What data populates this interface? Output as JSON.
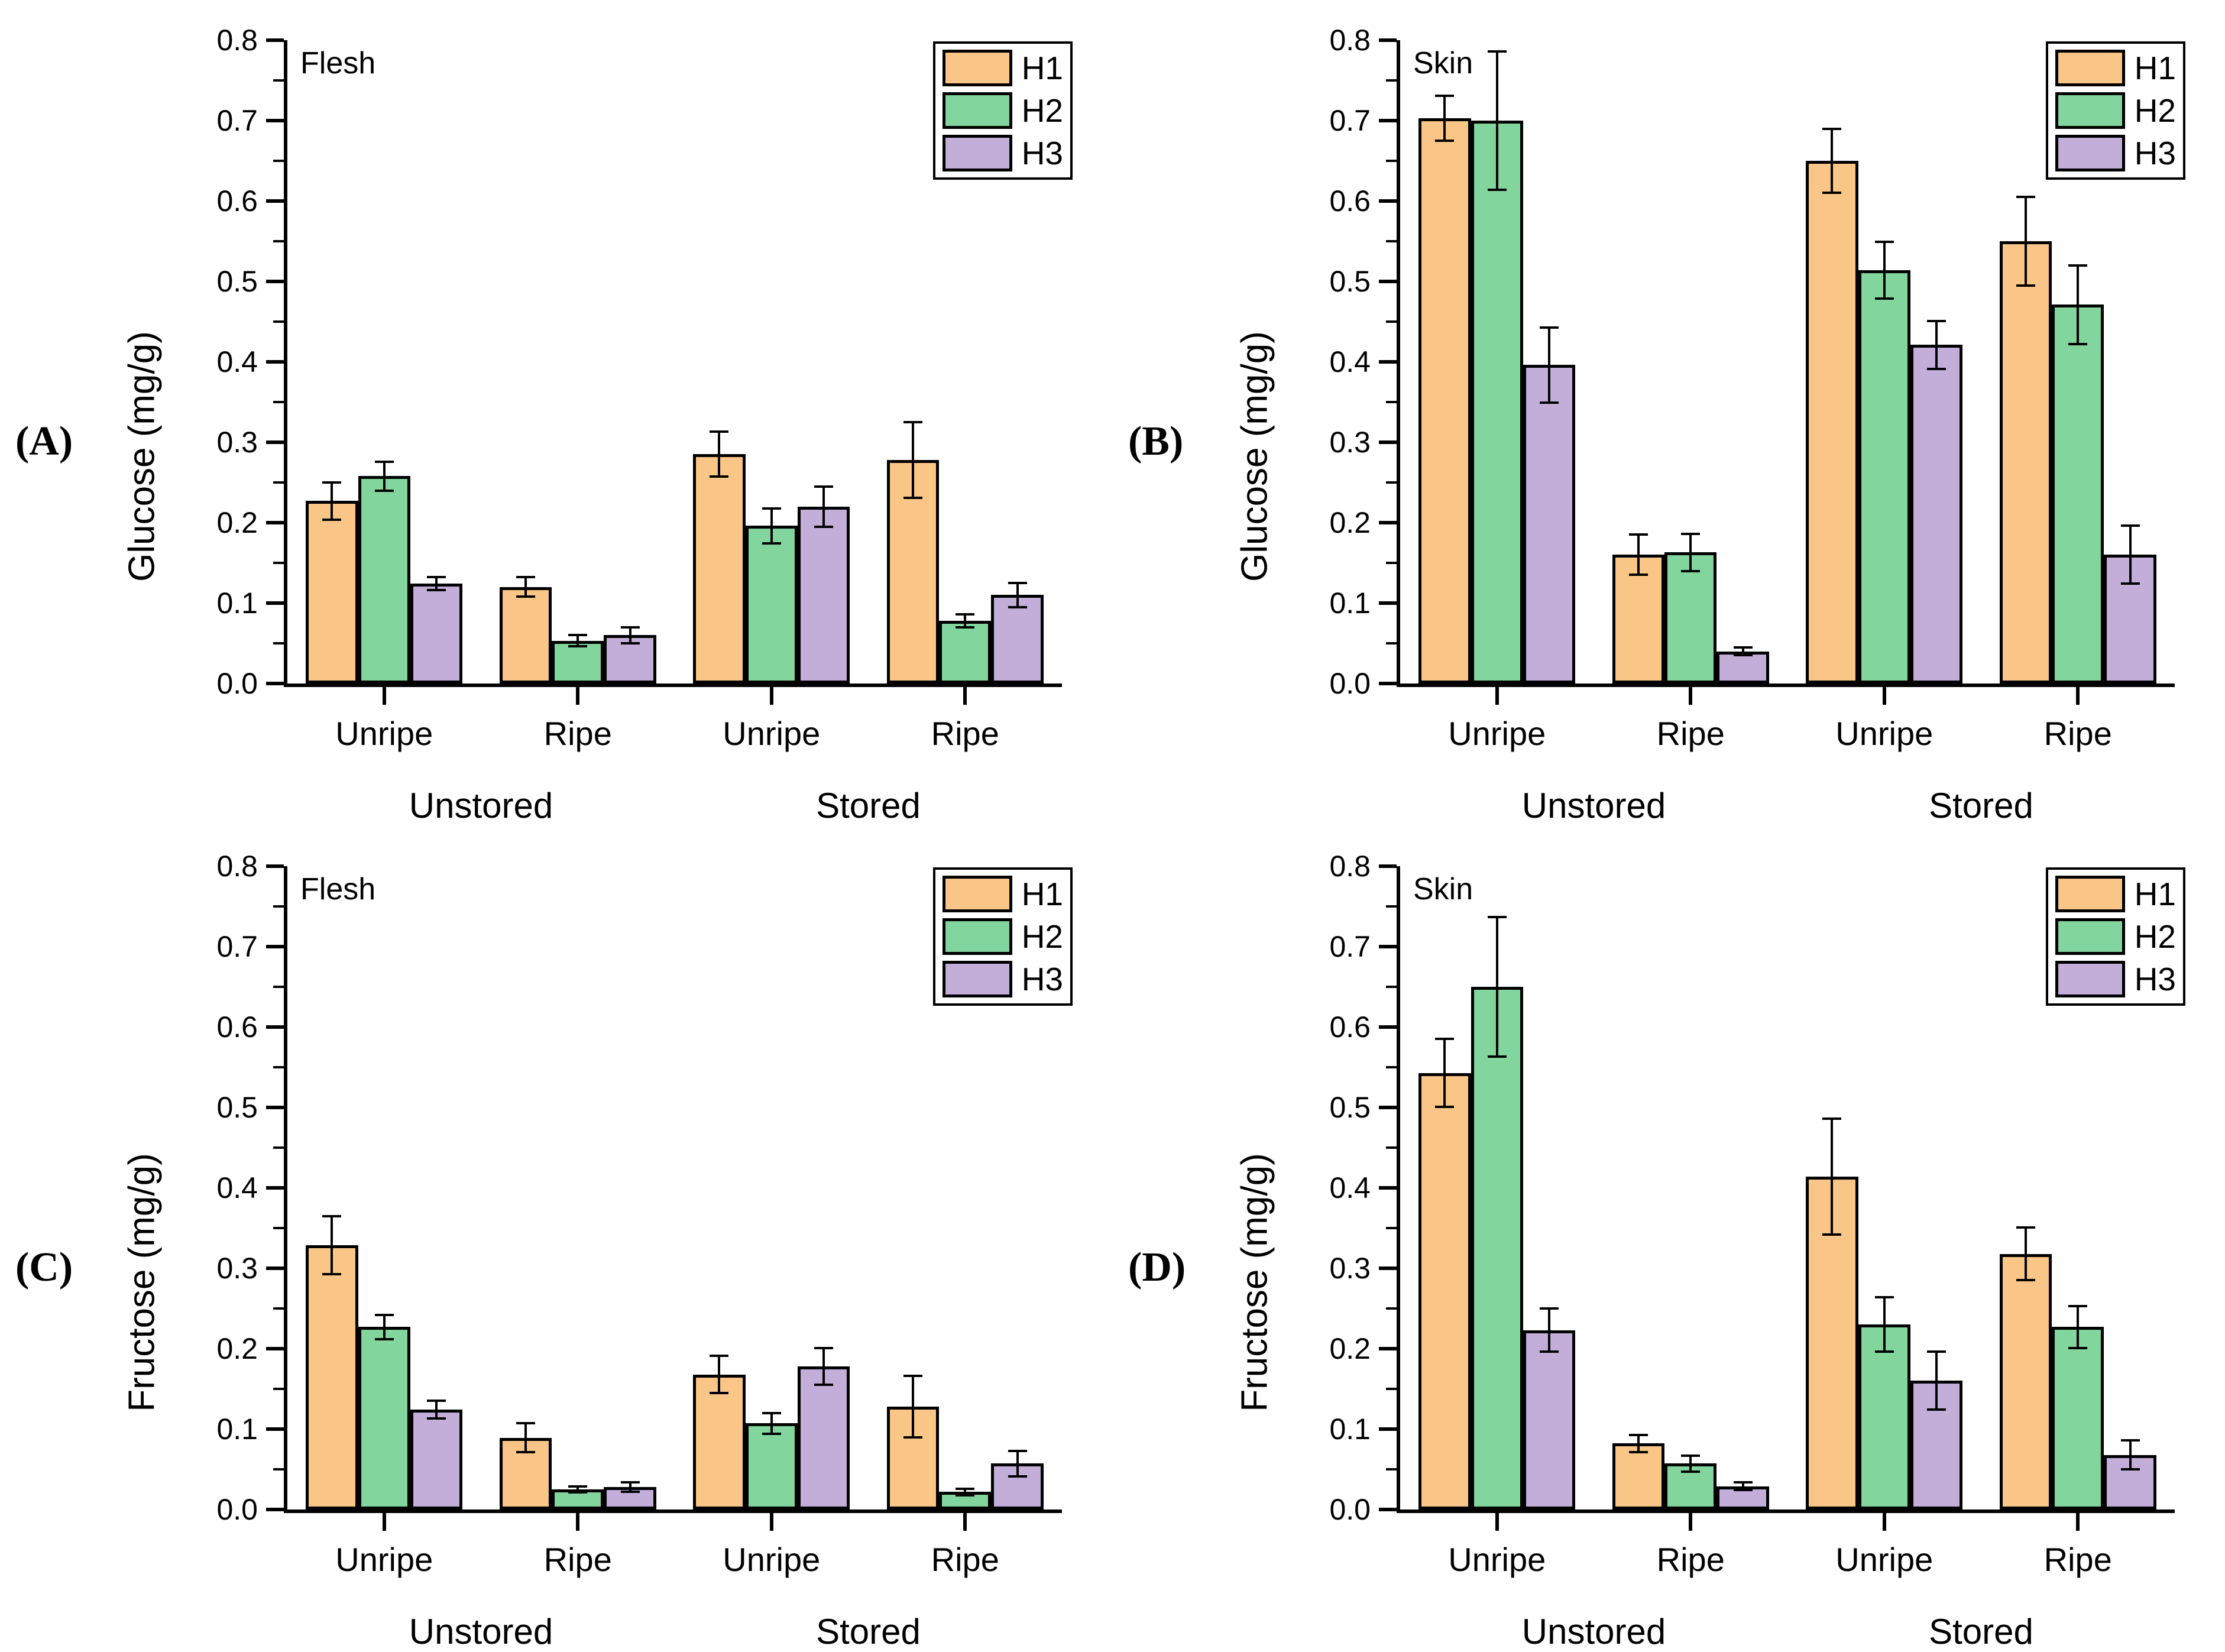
{
  "figure": {
    "background": "#ffffff",
    "series_colors": {
      "H1": "#FAC687",
      "H2": "#82D69D",
      "H3": "#C3AEDA"
    },
    "axis_color": "#000000"
  },
  "chart_data": [
    {
      "type": "bar",
      "letter": "(A)",
      "title_inside": "Flesh",
      "ylabel": "Glucose (mg/g)",
      "ylim": [
        0.0,
        0.8
      ],
      "ytick_step": 0.1,
      "yminor_step": 0.05,
      "ytick_decimals": 1,
      "grid": false,
      "legend_position": "top-right",
      "group_labels": [
        "Unripe",
        "Ripe",
        "Unripe",
        "Ripe"
      ],
      "category_labels": [
        "Unstored",
        "Stored"
      ],
      "series": [
        {
          "name": "H1",
          "color": "#FAC687",
          "values": [
            0.227,
            0.12,
            0.285,
            0.278
          ],
          "errors": [
            0.023,
            0.012,
            0.028,
            0.047
          ]
        },
        {
          "name": "H2",
          "color": "#82D69D",
          "values": [
            0.258,
            0.053,
            0.196,
            0.078
          ],
          "errors": [
            0.018,
            0.007,
            0.022,
            0.008
          ]
        },
        {
          "name": "H3",
          "color": "#C3AEDA",
          "values": [
            0.124,
            0.06,
            0.22,
            0.11
          ],
          "errors": [
            0.008,
            0.01,
            0.025,
            0.015
          ]
        }
      ]
    },
    {
      "type": "bar",
      "letter": "(B)",
      "title_inside": "Skin",
      "ylabel": "Glucose (mg/g)",
      "ylim": [
        0.0,
        0.8
      ],
      "ytick_step": 0.1,
      "yminor_step": 0.05,
      "ytick_decimals": 1,
      "grid": false,
      "legend_position": "top-right",
      "group_labels": [
        "Unripe",
        "Ripe",
        "Unripe",
        "Ripe"
      ],
      "category_labels": [
        "Unstored",
        "Stored"
      ],
      "series": [
        {
          "name": "H1",
          "color": "#FAC687",
          "values": [
            0.703,
            0.16,
            0.65,
            0.55
          ],
          "errors": [
            0.028,
            0.025,
            0.04,
            0.055
          ]
        },
        {
          "name": "H2",
          "color": "#82D69D",
          "values": [
            0.7,
            0.163,
            0.514,
            0.471
          ],
          "errors": [
            0.086,
            0.023,
            0.035,
            0.049
          ]
        },
        {
          "name": "H3",
          "color": "#C3AEDA",
          "values": [
            0.396,
            0.04,
            0.421,
            0.16
          ],
          "errors": [
            0.047,
            0.005,
            0.03,
            0.036
          ]
        }
      ]
    },
    {
      "type": "bar",
      "letter": "(C)",
      "title_inside": "Flesh",
      "ylabel": "Fructose (mg/g)",
      "ylim": [
        0.0,
        0.8
      ],
      "ytick_step": 0.1,
      "yminor_step": 0.05,
      "ytick_decimals": 1,
      "grid": false,
      "legend_position": "top-right",
      "group_labels": [
        "Unripe",
        "Ripe",
        "Unripe",
        "Ripe"
      ],
      "category_labels": [
        "Unstored",
        "Stored"
      ],
      "series": [
        {
          "name": "H1",
          "color": "#FAC687",
          "values": [
            0.329,
            0.089,
            0.168,
            0.128
          ],
          "errors": [
            0.036,
            0.018,
            0.023,
            0.038
          ]
        },
        {
          "name": "H2",
          "color": "#82D69D",
          "values": [
            0.227,
            0.025,
            0.107,
            0.022
          ],
          "errors": [
            0.015,
            0.004,
            0.013,
            0.004
          ]
        },
        {
          "name": "H3",
          "color": "#C3AEDA",
          "values": [
            0.124,
            0.028,
            0.178,
            0.057
          ],
          "errors": [
            0.011,
            0.006,
            0.023,
            0.016
          ]
        }
      ]
    },
    {
      "type": "bar",
      "letter": "(D)",
      "title_inside": "Skin",
      "ylabel": "Fructose (mg/g)",
      "ylim": [
        0.0,
        0.8
      ],
      "ytick_step": 0.1,
      "yminor_step": 0.05,
      "ytick_decimals": 1,
      "grid": false,
      "legend_position": "top-right",
      "group_labels": [
        "Unripe",
        "Ripe",
        "Unripe",
        "Ripe"
      ],
      "category_labels": [
        "Unstored",
        "Stored"
      ],
      "series": [
        {
          "name": "H1",
          "color": "#FAC687",
          "values": [
            0.543,
            0.082,
            0.414,
            0.318
          ],
          "errors": [
            0.042,
            0.011,
            0.072,
            0.033
          ]
        },
        {
          "name": "H2",
          "color": "#82D69D",
          "values": [
            0.65,
            0.057,
            0.23,
            0.227
          ],
          "errors": [
            0.087,
            0.01,
            0.034,
            0.026
          ]
        },
        {
          "name": "H3",
          "color": "#C3AEDA",
          "values": [
            0.223,
            0.029,
            0.16,
            0.068
          ],
          "errors": [
            0.027,
            0.005,
            0.036,
            0.018
          ]
        }
      ]
    }
  ]
}
